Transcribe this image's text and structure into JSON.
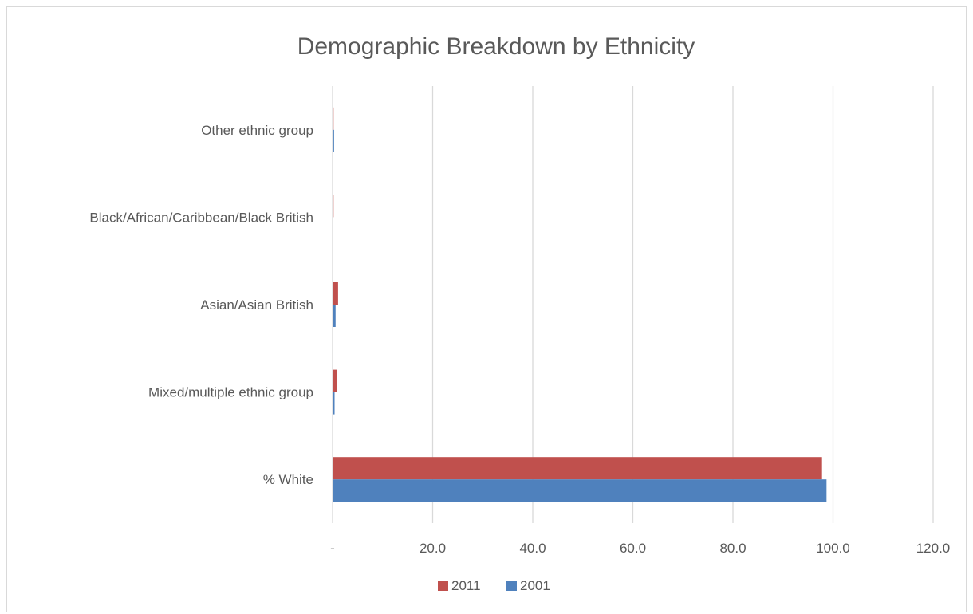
{
  "chart_data": {
    "type": "bar",
    "orientation": "horizontal",
    "title": "Demographic Breakdown by Ethnicity",
    "xlabel": "",
    "ylabel": "",
    "categories": [
      "% White",
      "Mixed/multiple ethnic group",
      "Asian/Asian British",
      "Black/African/Caribbean/Black British",
      "Other ethnic group"
    ],
    "series": [
      {
        "name": "2011",
        "color": "#c0504d",
        "values": [
          97.8,
          0.8,
          1.1,
          0.2,
          0.2
        ]
      },
      {
        "name": "2001",
        "color": "#4f81bd",
        "values": [
          98.7,
          0.4,
          0.6,
          0.1,
          0.3
        ]
      }
    ],
    "xlim": [
      0,
      120
    ],
    "xticks": [
      0,
      20,
      40,
      60,
      80,
      100,
      120
    ],
    "xtick_labels": [
      "-",
      "20.0",
      "40.0",
      "60.0",
      "80.0",
      "100.0",
      "120.0"
    ],
    "grid": true,
    "legend": "bottom"
  }
}
